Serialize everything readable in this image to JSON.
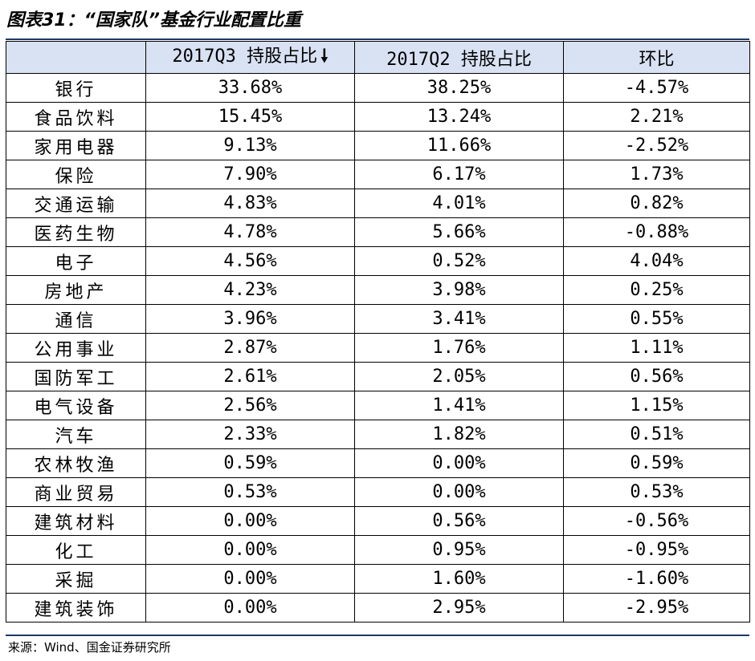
{
  "title": "图表31：“国家队”基金行业配置比重",
  "table": {
    "headers": [
      "",
      "2017Q3 持股占比",
      "2017Q2 持股占比",
      "环比"
    ],
    "sort_indicator_icon": "arrow-down-icon",
    "rows": [
      {
        "industry": "银行",
        "q3": "33.68%",
        "q2": "38.25%",
        "chg": "-4.57%"
      },
      {
        "industry": "食品饮料",
        "q3": "15.45%",
        "q2": "13.24%",
        "chg": "2.21%"
      },
      {
        "industry": "家用电器",
        "q3": "9.13%",
        "q2": "11.66%",
        "chg": "-2.52%"
      },
      {
        "industry": "保险",
        "q3": "7.90%",
        "q2": "6.17%",
        "chg": "1.73%"
      },
      {
        "industry": "交通运输",
        "q3": "4.83%",
        "q2": "4.01%",
        "chg": "0.82%"
      },
      {
        "industry": "医药生物",
        "q3": "4.78%",
        "q2": "5.66%",
        "chg": "-0.88%"
      },
      {
        "industry": "电子",
        "q3": "4.56%",
        "q2": "0.52%",
        "chg": "4.04%"
      },
      {
        "industry": "房地产",
        "q3": "4.23%",
        "q2": "3.98%",
        "chg": "0.25%"
      },
      {
        "industry": "通信",
        "q3": "3.96%",
        "q2": "3.41%",
        "chg": "0.55%"
      },
      {
        "industry": "公用事业",
        "q3": "2.87%",
        "q2": "1.76%",
        "chg": "1.11%"
      },
      {
        "industry": "国防军工",
        "q3": "2.61%",
        "q2": "2.05%",
        "chg": "0.56%"
      },
      {
        "industry": "电气设备",
        "q3": "2.56%",
        "q2": "1.41%",
        "chg": "1.15%"
      },
      {
        "industry": "汽车",
        "q3": "2.33%",
        "q2": "1.82%",
        "chg": "0.51%"
      },
      {
        "industry": "农林牧渔",
        "q3": "0.59%",
        "q2": "0.00%",
        "chg": "0.59%"
      },
      {
        "industry": "商业贸易",
        "q3": "0.53%",
        "q2": "0.00%",
        "chg": "0.53%"
      },
      {
        "industry": "建筑材料",
        "q3": "0.00%",
        "q2": "0.56%",
        "chg": "-0.56%"
      },
      {
        "industry": "化工",
        "q3": "0.00%",
        "q2": "0.95%",
        "chg": "-0.95%"
      },
      {
        "industry": "采掘",
        "q3": "0.00%",
        "q2": "1.60%",
        "chg": "-1.60%"
      },
      {
        "industry": "建筑装饰",
        "q3": "0.00%",
        "q2": "2.95%",
        "chg": "-2.95%"
      }
    ]
  },
  "source": "来源：Wind、国金证券研究所",
  "colors": {
    "header_bg": "#d9e2f3",
    "rule": "#1f3864"
  }
}
